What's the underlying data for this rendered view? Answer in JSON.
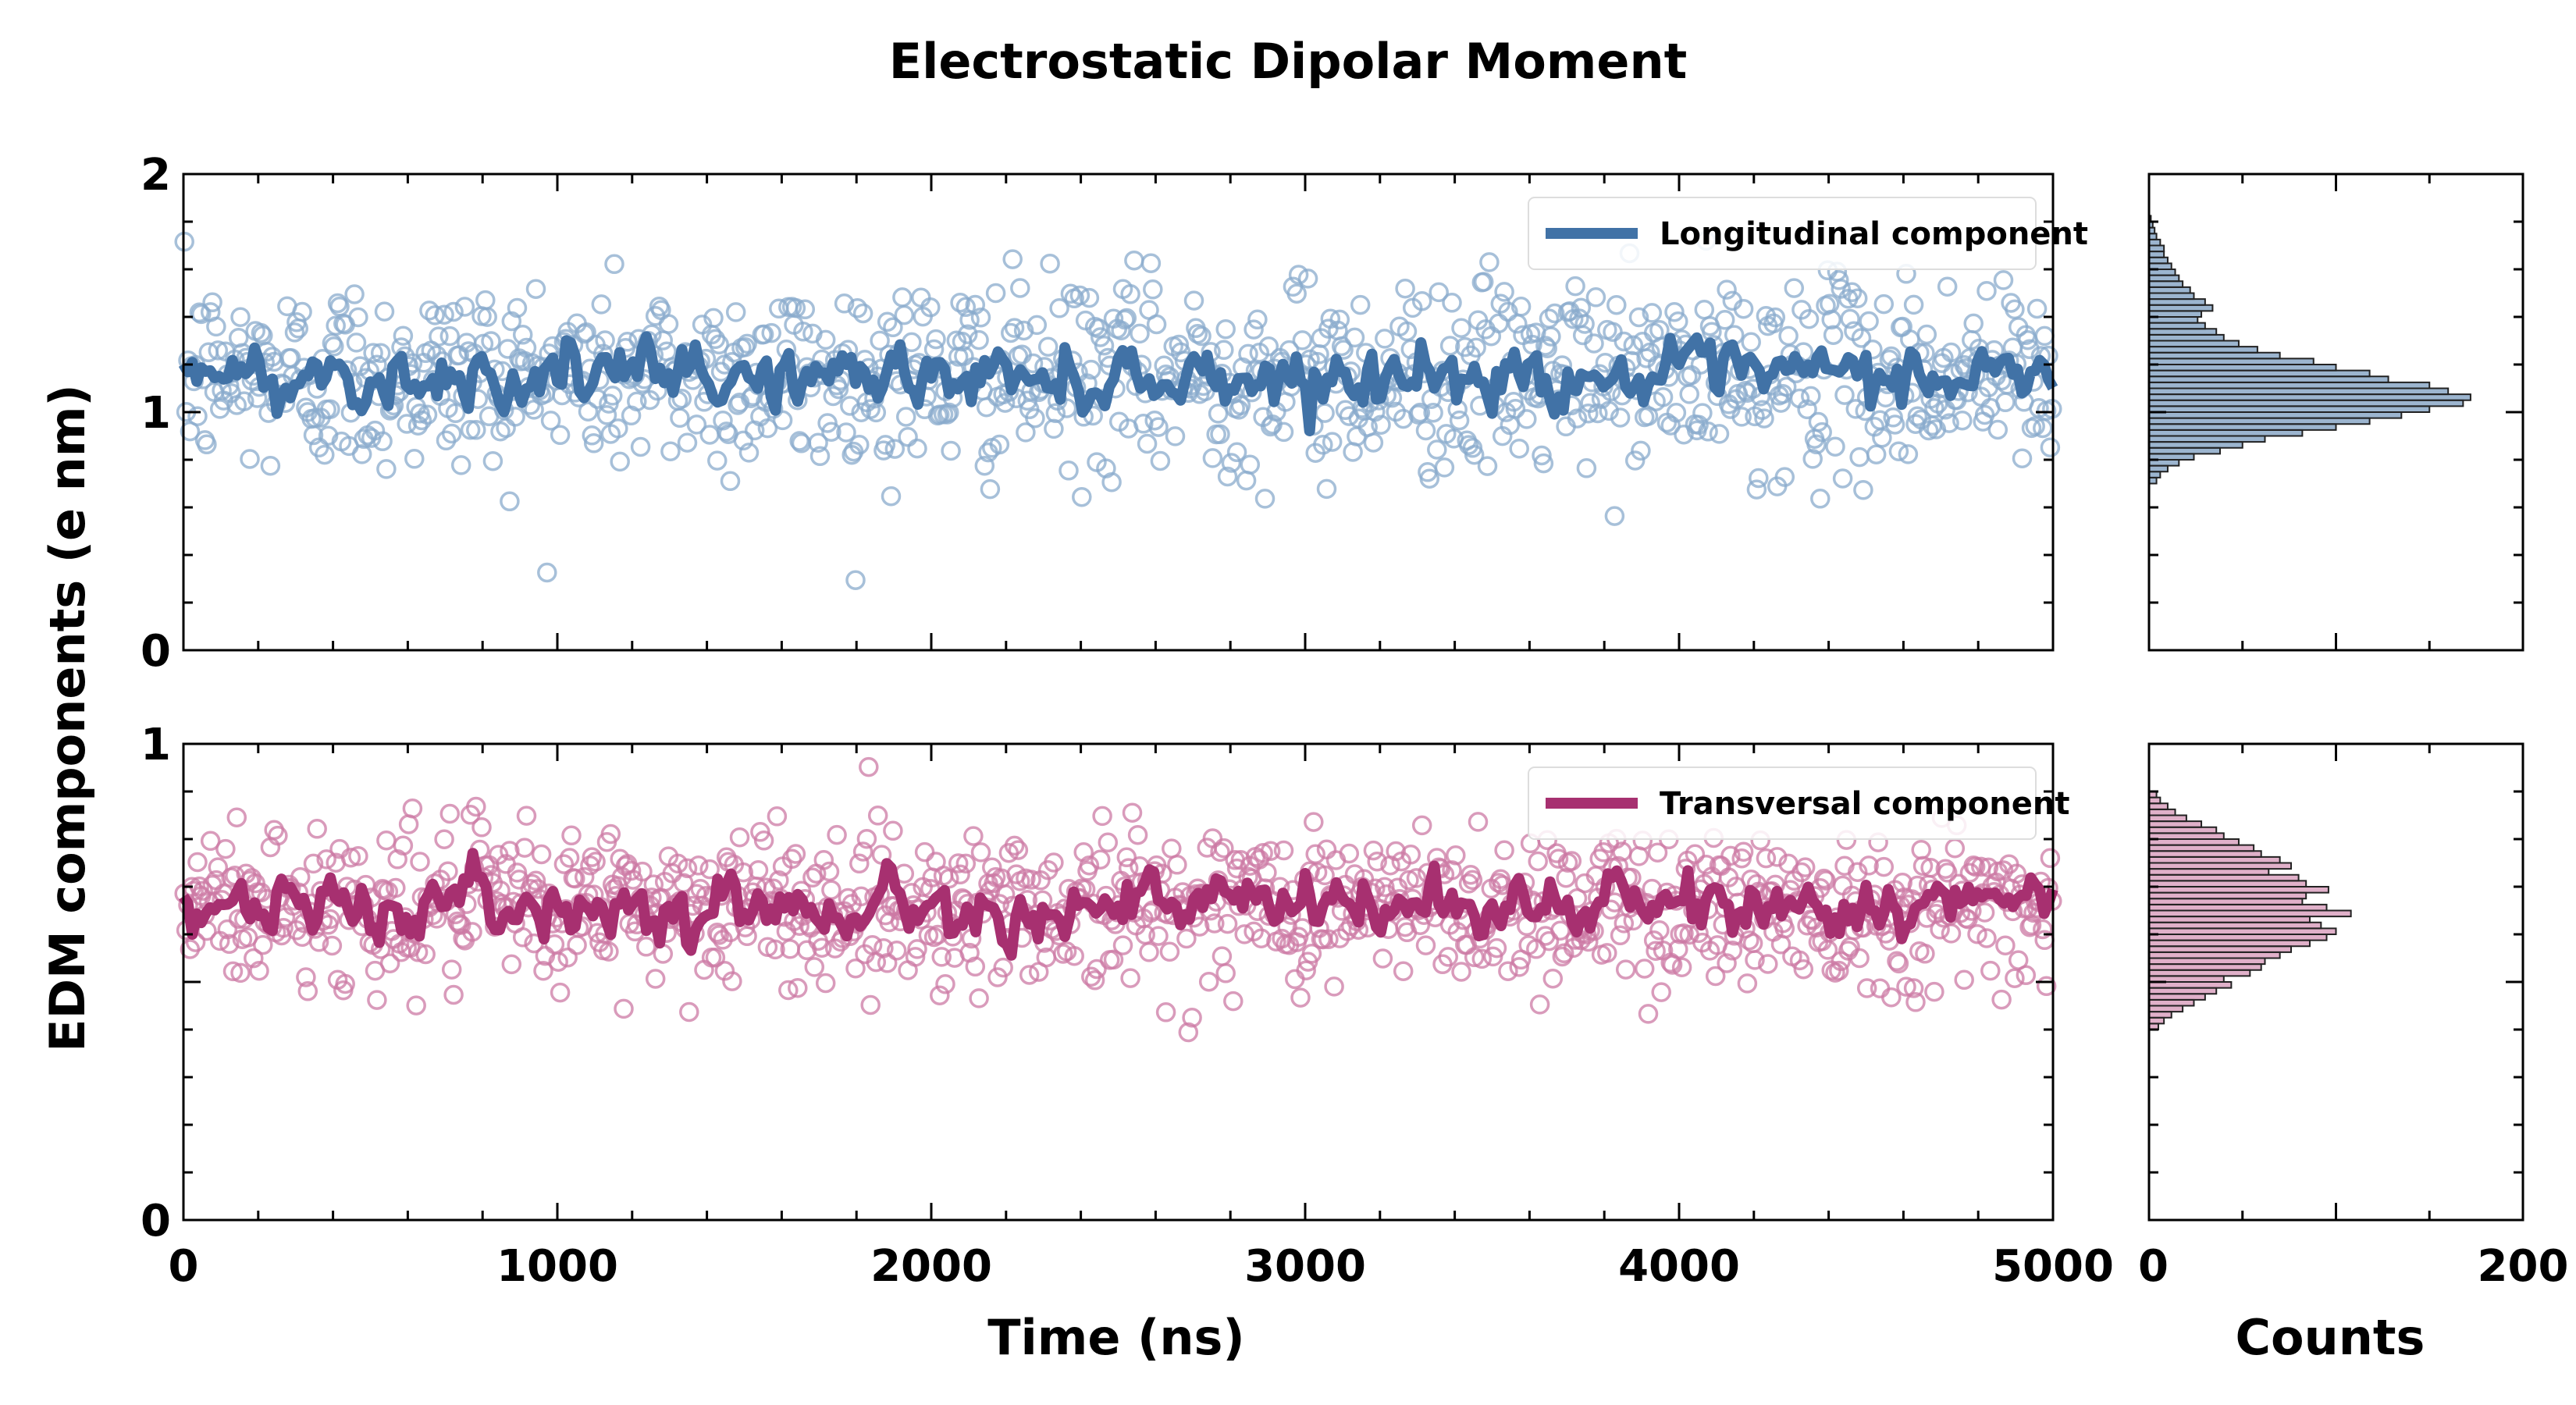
{
  "title": "Electrostatic Dipolar Moment",
  "ylabel": "EDM components (e nm)",
  "xlabel": "Time (ns)",
  "hist_xlabel": "Counts",
  "chart_data": [
    {
      "type": "scatter",
      "panel": "top",
      "ylim": [
        0,
        2
      ],
      "xlim": [
        0,
        5000
      ],
      "x_ticks": [
        0,
        1000,
        2000,
        3000,
        4000,
        5000
      ],
      "y_ticks": [
        0,
        1,
        2
      ],
      "legend_position": "top-right",
      "series": [
        {
          "name": "Longitudinal component",
          "kind": "line",
          "color": "#4172a6",
          "mean": 1.15,
          "amplitude": 0.1
        },
        {
          "kind": "scatter-open-circles",
          "color": "#8aabcc",
          "n": 1000,
          "mean": 1.15,
          "sd": 0.24
        }
      ]
    },
    {
      "type": "scatter",
      "panel": "bottom",
      "ylim": [
        0,
        1
      ],
      "xlim": [
        0,
        5000
      ],
      "x_ticks": [
        0,
        1000,
        2000,
        3000,
        4000,
        5000
      ],
      "x_tick_labels": [
        "0",
        "1000",
        "2000",
        "3000",
        "4000",
        "5000"
      ],
      "y_ticks": [
        0,
        1
      ],
      "legend_position": "top-right",
      "series": [
        {
          "name": "Transversal component",
          "kind": "line",
          "color": "#a73070",
          "mean": 0.66,
          "amplitude": 0.05
        },
        {
          "kind": "scatter-open-circles",
          "color": "#cc7aa4",
          "n": 1000,
          "mean": 0.66,
          "sd": 0.1
        }
      ]
    },
    {
      "type": "bar",
      "panel": "top-histogram",
      "orientation": "horizontal",
      "xlim": [
        0,
        200
      ],
      "ylim": [
        0,
        2
      ],
      "color": "#4a78a8",
      "bin_edges": [
        0.7,
        0.725,
        0.75,
        0.775,
        0.8,
        0.825,
        0.85,
        0.875,
        0.9,
        0.925,
        0.95,
        0.975,
        1.0,
        1.025,
        1.05,
        1.075,
        1.1,
        1.125,
        1.15,
        1.175,
        1.2,
        1.225,
        1.25,
        1.275,
        1.3,
        1.325,
        1.35,
        1.375,
        1.4,
        1.425,
        1.45,
        1.475,
        1.5,
        1.525,
        1.55,
        1.575,
        1.6,
        1.625,
        1.65,
        1.675,
        1.7,
        1.725,
        1.75,
        1.775,
        1.8,
        1.825
      ],
      "values": [
        4,
        6,
        10,
        16,
        24,
        38,
        50,
        62,
        82,
        100,
        118,
        135,
        150,
        168,
        172,
        160,
        150,
        128,
        118,
        100,
        88,
        70,
        58,
        48,
        40,
        36,
        30,
        26,
        28,
        34,
        30,
        24,
        22,
        18,
        16,
        14,
        12,
        10,
        8,
        8,
        6,
        4,
        3,
        2,
        1
      ]
    },
    {
      "type": "bar",
      "panel": "bottom-histogram",
      "orientation": "horizontal",
      "xlim": [
        0,
        200
      ],
      "x_ticks": [
        0,
        200
      ],
      "x_tick_labels": [
        "0",
        "200"
      ],
      "ylim": [
        0,
        1
      ],
      "color": "#c7709c",
      "bin_edges": [
        0.4,
        0.4125,
        0.425,
        0.4375,
        0.45,
        0.4625,
        0.475,
        0.4875,
        0.5,
        0.5125,
        0.525,
        0.5375,
        0.55,
        0.5625,
        0.575,
        0.5875,
        0.6,
        0.6125,
        0.625,
        0.6375,
        0.65,
        0.6625,
        0.675,
        0.6875,
        0.7,
        0.7125,
        0.725,
        0.7375,
        0.75,
        0.7625,
        0.775,
        0.7875,
        0.8,
        0.8125,
        0.825,
        0.8375,
        0.85,
        0.8625,
        0.875,
        0.8875,
        0.9
      ],
      "values": [
        5,
        8,
        12,
        18,
        24,
        30,
        36,
        44,
        40,
        54,
        60,
        62,
        70,
        76,
        86,
        95,
        100,
        92,
        86,
        108,
        95,
        82,
        84,
        96,
        84,
        80,
        64,
        76,
        70,
        60,
        56,
        48,
        40,
        36,
        28,
        20,
        14,
        10,
        6,
        4
      ]
    }
  ]
}
